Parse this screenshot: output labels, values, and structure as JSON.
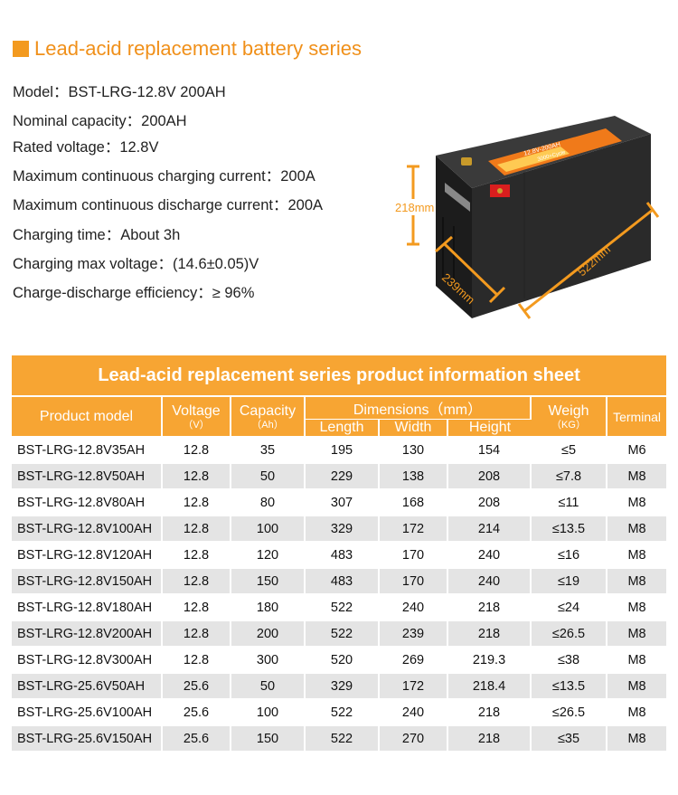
{
  "heading": {
    "title": "Lead-acid replacement battery series"
  },
  "specs": [
    {
      "label": "Model：",
      "value": "BST-LRG-12.8V 200AH"
    },
    {
      "label": "Nominal capacity：",
      "value": "200AH"
    },
    {
      "label": "Rated voltage：",
      "value": "12.8V"
    },
    {
      "label": "Maximum continuous charging current：",
      "value": "200A"
    },
    {
      "label": "Maximum continuous discharge current：",
      "value": "200A"
    },
    {
      "label": "Charging time：",
      "value": "About 3h"
    },
    {
      "label": "Charging max voltage：",
      "value": "(14.6±0.05)V"
    },
    {
      "label": "Charge-discharge efficiency：",
      "value": "≥ 96%"
    }
  ],
  "figure": {
    "height_label": "218mm",
    "width_label": "239mm",
    "length_label": "522mm",
    "label_sticker_text": "12.8V-200AH",
    "label_sticker_sub": "3000+Cycle",
    "accent_color": "#f39a1f"
  },
  "table": {
    "title": "Lead-acid replacement series product information sheet",
    "headers": {
      "model": "Product model",
      "voltage": "Voltage",
      "voltage_unit": "（V）",
      "capacity": "Capacity",
      "capacity_unit": "（Ah）",
      "dimensions": "Dimensions（mm）",
      "length": "Length",
      "width": "Width",
      "height": "Height",
      "weight": "Weigh",
      "weight_unit": "（KG）",
      "terminal": "Terminal"
    },
    "rows": [
      [
        "BST-LRG-12.8V35AH",
        "12.8",
        "35",
        "195",
        "130",
        "154",
        "≤5",
        "M6"
      ],
      [
        "BST-LRG-12.8V50AH",
        "12.8",
        "50",
        "229",
        "138",
        "208",
        "≤7.8",
        "M8"
      ],
      [
        "BST-LRG-12.8V80AH",
        "12.8",
        "80",
        "307",
        "168",
        "208",
        "≤11",
        "M8"
      ],
      [
        "BST-LRG-12.8V100AH",
        "12.8",
        "100",
        "329",
        "172",
        "214",
        "≤13.5",
        "M8"
      ],
      [
        "BST-LRG-12.8V120AH",
        "12.8",
        "120",
        "483",
        "170",
        "240",
        "≤16",
        "M8"
      ],
      [
        "BST-LRG-12.8V150AH",
        "12.8",
        "150",
        "483",
        "170",
        "240",
        "≤19",
        "M8"
      ],
      [
        "BST-LRG-12.8V180AH",
        "12.8",
        "180",
        "522",
        "240",
        "218",
        "≤24",
        "M8"
      ],
      [
        "BST-LRG-12.8V200AH",
        "12.8",
        "200",
        "522",
        "239",
        "218",
        "≤26.5",
        "M8"
      ],
      [
        "BST-LRG-12.8V300AH",
        "12.8",
        "300",
        "520",
        "269",
        "219.3",
        "≤38",
        "M8"
      ],
      [
        "BST-LRG-25.6V50AH",
        "25.6",
        "50",
        "329",
        "172",
        "218.4",
        "≤13.5",
        "M8"
      ],
      [
        "BST-LRG-25.6V100AH",
        "25.6",
        "100",
        "522",
        "240",
        "218",
        "≤26.5",
        "M8"
      ],
      [
        "BST-LRG-25.6V150AH",
        "25.6",
        "150",
        "522",
        "270",
        "218",
        "≤35",
        "M8"
      ]
    ]
  }
}
